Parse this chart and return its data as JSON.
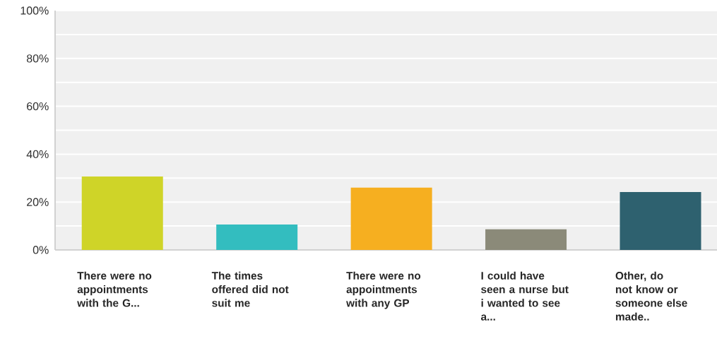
{
  "chart_data": {
    "type": "bar",
    "categories": [
      "There were no appointments with the G...",
      "The times offered did not suit me",
      "There were no appointments with any GP",
      "I could have seen a nurse but i wanted to see a...",
      "Other, do not know or someone else made.."
    ],
    "values": [
      30.7,
      10.6,
      26.0,
      8.6,
      24.2
    ],
    "colors": [
      "#cfd428",
      "#33bdbf",
      "#f6af20",
      "#8b8a79",
      "#2e616f"
    ],
    "ylim": [
      0,
      100
    ],
    "yticks": [
      {
        "value": 0,
        "label": "0%"
      },
      {
        "value": 20,
        "label": "20%"
      },
      {
        "value": 40,
        "label": "40%"
      },
      {
        "value": 60,
        "label": "60%"
      },
      {
        "value": 80,
        "label": "80%"
      },
      {
        "value": 100,
        "label": "100%"
      }
    ],
    "grid": "y"
  }
}
